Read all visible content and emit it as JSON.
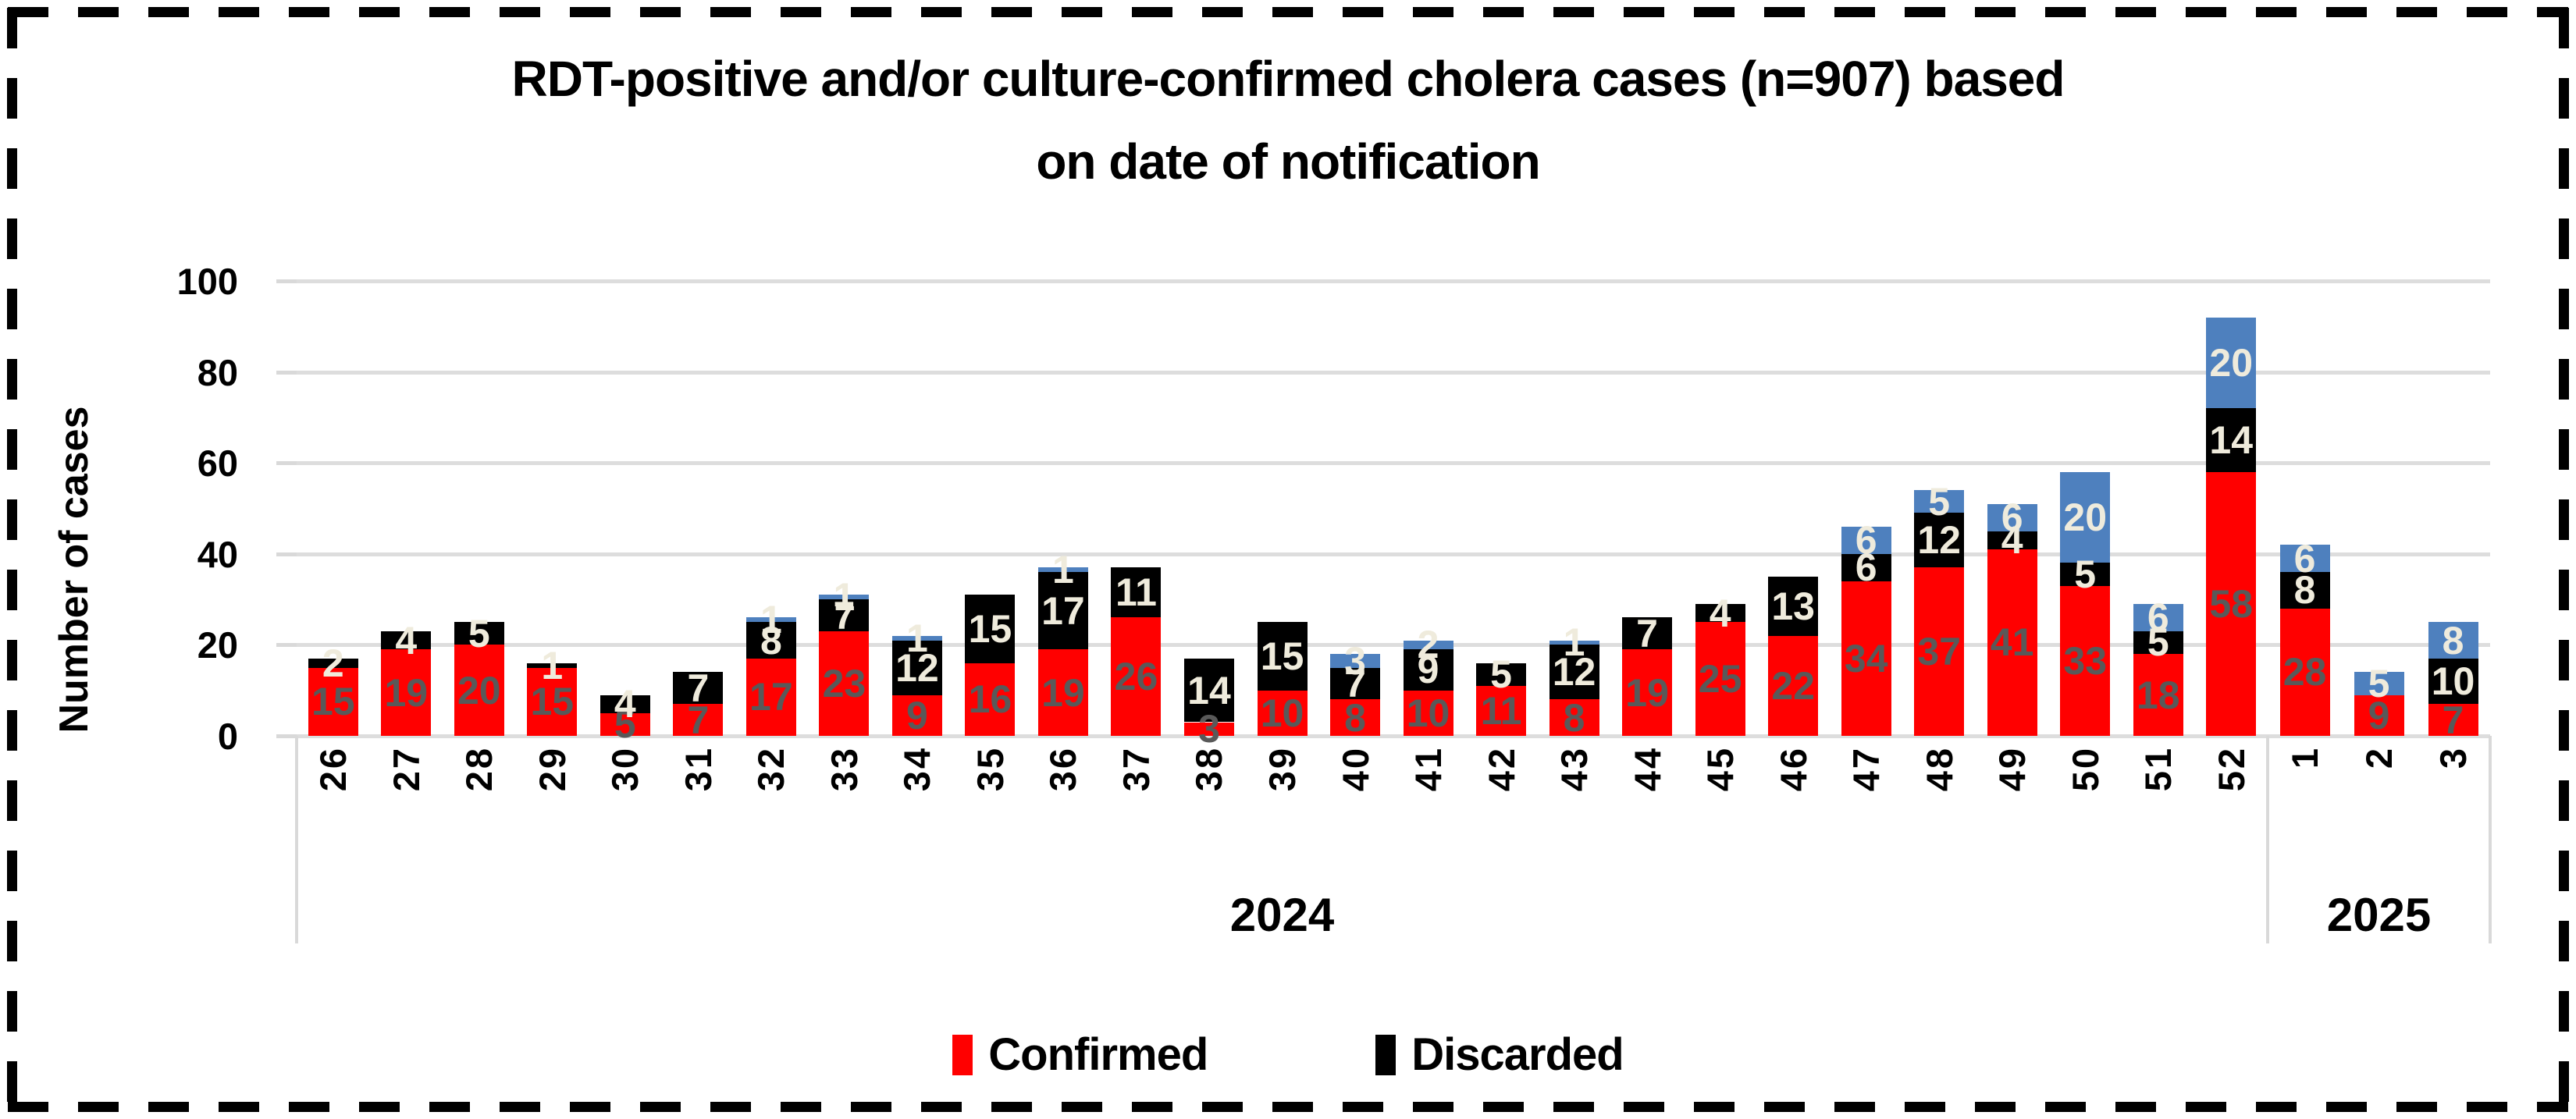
{
  "title": {
    "line1": "RDT-positive and/or culture-confirmed cholera cases (n=907) based",
    "line2": "on date of notification"
  },
  "y_axis": {
    "title": "Number of cases",
    "ticks": [
      0,
      20,
      40,
      60,
      80,
      100
    ],
    "max": 100
  },
  "legend": {
    "items": [
      {
        "label": "Confirmed",
        "color": "#FF0000"
      },
      {
        "label": "Discarded",
        "color": "#000000"
      }
    ]
  },
  "colors": {
    "confirmed": "#FF0000",
    "discarded": "#000000",
    "third_series_blue": "#4E80BE",
    "confirmed_label": "#595959",
    "segment_label": "#EFEBDC",
    "gridline": "#DDDDDD",
    "axis_line": "#D9D9D9",
    "title_text": "#000000"
  },
  "chart_data": {
    "type": "bar",
    "stacked": true,
    "title": "RDT-positive and/or culture-confirmed cholera cases (n=907) based on date of notification",
    "xlabel": "",
    "ylabel": "Number of cases",
    "ylim": [
      0,
      100
    ],
    "grid": true,
    "legend_position": "bottom",
    "total_n": 907,
    "categories": [
      "26",
      "27",
      "28",
      "29",
      "30",
      "31",
      "32",
      "33",
      "34",
      "35",
      "36",
      "37",
      "38",
      "39",
      "40",
      "41",
      "42",
      "43",
      "44",
      "45",
      "46",
      "47",
      "48",
      "49",
      "50",
      "51",
      "52",
      "1",
      "2",
      "3"
    ],
    "category_groups": [
      {
        "label": "2024",
        "span": 27
      },
      {
        "label": "2025",
        "span": 3
      }
    ],
    "series": [
      {
        "name": "Confirmed",
        "color": "#FF0000",
        "label_color": "#595959",
        "values": [
          15,
          19,
          20,
          15,
          5,
          7,
          17,
          23,
          9,
          16,
          19,
          26,
          3,
          10,
          8,
          10,
          11,
          8,
          19,
          25,
          22,
          34,
          37,
          41,
          33,
          18,
          58,
          28,
          9,
          7
        ]
      },
      {
        "name": "Discarded",
        "color": "#000000",
        "label_color": "#EFEBDC",
        "values": [
          2,
          4,
          5,
          1,
          4,
          7,
          8,
          7,
          12,
          15,
          17,
          11,
          14,
          15,
          7,
          9,
          5,
          12,
          7,
          4,
          13,
          6,
          12,
          4,
          5,
          5,
          14,
          8,
          0,
          10
        ]
      },
      {
        "name": "",
        "color": "#4E80BE",
        "label_color": "#EFEBDC",
        "values": [
          0,
          0,
          0,
          0,
          0,
          0,
          1,
          1,
          1,
          0,
          1,
          0,
          0,
          0,
          3,
          2,
          0,
          1,
          0,
          0,
          0,
          6,
          5,
          6,
          20,
          6,
          20,
          6,
          5,
          8
        ]
      }
    ]
  }
}
